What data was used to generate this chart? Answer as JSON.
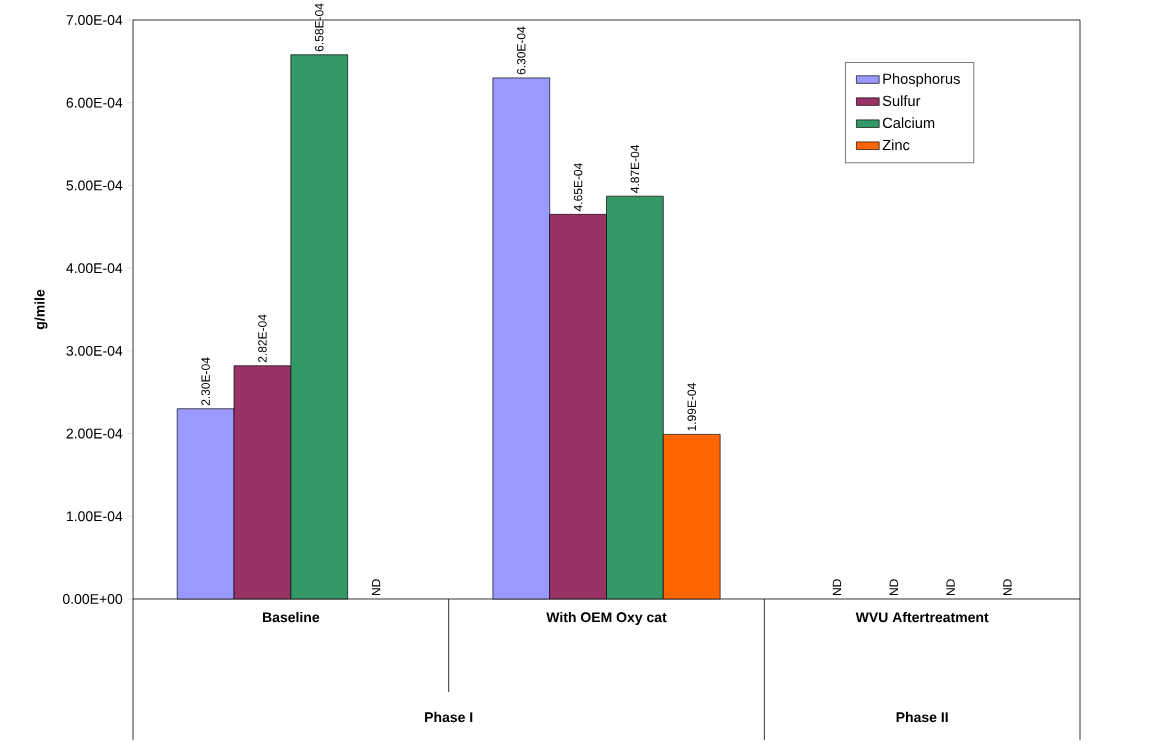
{
  "chart_data": {
    "type": "bar",
    "ylabel": "g/mile",
    "categories": [
      "Baseline",
      "With OEM Oxy cat",
      "WVU Aftertreatment"
    ],
    "series": [
      {
        "name": "Phosphorus",
        "color": "#9999ff",
        "values": [
          0.00023,
          0.00063,
          null
        ],
        "value_labels": [
          "2.30E-04",
          "6.30E-04",
          "ND"
        ]
      },
      {
        "name": "Sulfur",
        "color": "#993366",
        "values": [
          0.000282,
          0.000465,
          null
        ],
        "value_labels": [
          "2.82E-04",
          "4.65E-04",
          "ND"
        ]
      },
      {
        "name": "Calcium",
        "color": "#339966",
        "values": [
          0.000658,
          0.000487,
          null
        ],
        "value_labels": [
          "6.58E-04",
          "4.87E-04",
          "ND"
        ]
      },
      {
        "name": "Zinc",
        "color": "#ff6600",
        "values": [
          null,
          0.000199,
          null
        ],
        "value_labels": [
          "ND",
          "1.99E-04",
          "ND"
        ]
      }
    ],
    "ylim": [
      0,
      0.0007
    ],
    "yticks": [
      {
        "value": 0,
        "label": "0.00E+00"
      },
      {
        "value": 0.0001,
        "label": "1.00E-04"
      },
      {
        "value": 0.0002,
        "label": "2.00E-04"
      },
      {
        "value": 0.0003,
        "label": "3.00E-04"
      },
      {
        "value": 0.0004,
        "label": "4.00E-04"
      },
      {
        "value": 0.0005,
        "label": "5.00E-04"
      },
      {
        "value": 0.0006,
        "label": "6.00E-04"
      },
      {
        "value": 0.0007,
        "label": "7.00E-04"
      }
    ],
    "annotations": [
      "Phase I",
      "Phase II"
    ],
    "legend": "top right",
    "grid": false
  }
}
